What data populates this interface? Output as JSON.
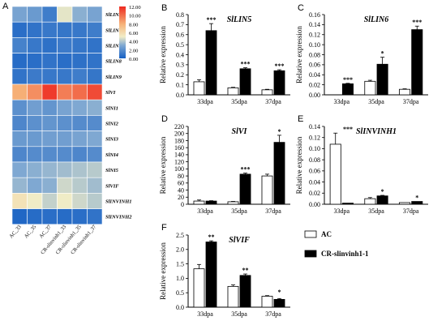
{
  "figure": {
    "panel_letters": [
      "A",
      "B",
      "C",
      "D",
      "E",
      "F"
    ],
    "legend": [
      {
        "label": "AC",
        "color": "#ffffff"
      },
      {
        "label": "CR-slinvinh1-1",
        "color": "#000000"
      }
    ]
  },
  "chart_data": [
    {
      "type": "heatmap",
      "panel": "A",
      "rows": [
        "SlLIN5",
        "SlLIN6",
        "SlLIN7",
        "SlLIN8",
        "SlLIN9",
        "SlVI",
        "SlNI1",
        "SlNI2",
        "SlNI3",
        "SlNI4",
        "SlNI5",
        "SlVIF",
        "SlINVINH1",
        "SlINVINH2"
      ],
      "columns": [
        "AC_33",
        "AC_35",
        "AC_37",
        "CR-slinvinh1_33",
        "CR-slinvinh1_35",
        "CR-slinvinh1_37"
      ],
      "values": [
        [
          2.8,
          2.4,
          1.2,
          4.8,
          3.2,
          2.8
        ],
        [
          0.6,
          0.8,
          1.0,
          0.9,
          1.0,
          1.2
        ],
        [
          1.4,
          1.0,
          0.7,
          1.1,
          0.9,
          0.8
        ],
        [
          0.5,
          0.6,
          0.8,
          0.6,
          0.7,
          0.8
        ],
        [
          0.8,
          1.1,
          1.0,
          1.0,
          1.2,
          0.9
        ],
        [
          8.0,
          9.0,
          11.5,
          9.5,
          10.0,
          11.0
        ],
        [
          2.0,
          2.6,
          2.2,
          2.8,
          3.0,
          3.2
        ],
        [
          1.6,
          2.0,
          2.2,
          2.0,
          1.8,
          1.8
        ],
        [
          2.4,
          2.4,
          2.6,
          2.6,
          2.8,
          3.0
        ],
        [
          1.6,
          1.8,
          1.8,
          1.8,
          1.6,
          1.8
        ],
        [
          3.0,
          3.2,
          3.4,
          3.6,
          3.8,
          4.0
        ],
        [
          3.4,
          3.0,
          3.2,
          4.4,
          4.0,
          3.6
        ],
        [
          5.6,
          5.0,
          4.2,
          5.0,
          4.4,
          4.0
        ],
        [
          0.3,
          0.5,
          0.6,
          0.5,
          0.6,
          0.8
        ]
      ],
      "colorbar": {
        "min": 0,
        "max": 12,
        "ticks": [
          "12.00",
          "10.00",
          "8.00",
          "6.00",
          "4.00",
          "2.00",
          "0.00"
        ]
      }
    },
    {
      "type": "bar",
      "panel": "B",
      "title": "SlLIN5",
      "categories": [
        "33dpa",
        "35dpa",
        "37dpa"
      ],
      "ylabel": "Relative expression",
      "ylim": [
        0,
        0.8
      ],
      "yticks": [
        "0.0",
        "0.1",
        "0.2",
        "0.3",
        "0.4",
        "0.5",
        "0.6",
        "0.7",
        "0.8"
      ],
      "series": [
        {
          "name": "AC",
          "values": [
            0.13,
            0.07,
            0.05
          ],
          "errors": [
            0.02,
            0.005,
            0.005
          ]
        },
        {
          "name": "CR-slinvinh1-1",
          "values": [
            0.64,
            0.26,
            0.24
          ],
          "errors": [
            0.07,
            0.01,
            0.01
          ]
        }
      ],
      "significance": [
        "***",
        "***",
        "***"
      ]
    },
    {
      "type": "bar",
      "panel": "C",
      "title": "SlLIN6",
      "categories": [
        "33dpa",
        "35dpa",
        "37dpa"
      ],
      "ylabel": "Relative expression",
      "ylim": [
        0,
        0.16
      ],
      "yticks": [
        "0.00",
        "0.02",
        "0.04",
        "0.06",
        "0.08",
        "0.10",
        "0.12",
        "0.14",
        "0.16"
      ],
      "series": [
        {
          "name": "AC",
          "values": [
            0.0,
            0.027,
            0.011
          ],
          "errors": [
            0.0,
            0.002,
            0.001
          ]
        },
        {
          "name": "CR-slinvinh1-1",
          "values": [
            0.022,
            0.061,
            0.13
          ],
          "errors": [
            0.001,
            0.014,
            0.007
          ]
        }
      ],
      "significance": [
        "***",
        "*",
        "***"
      ]
    },
    {
      "type": "bar",
      "panel": "D",
      "title": "SlVI",
      "categories": [
        "33dpa",
        "35dpa",
        "37dpa"
      ],
      "ylabel": "Relative expression",
      "ylim": [
        0,
        220
      ],
      "yticks": [
        "0",
        "20",
        "40",
        "60",
        "80",
        "100",
        "120",
        "140",
        "160",
        "180",
        "200",
        "220"
      ],
      "series": [
        {
          "name": "AC",
          "values": [
            9,
            7,
            80
          ],
          "errors": [
            3,
            1,
            5
          ]
        },
        {
          "name": "CR-slinvinh1-1",
          "values": [
            9,
            85,
            175
          ],
          "errors": [
            1,
            3,
            20
          ]
        }
      ],
      "significance": [
        "",
        "***",
        "*"
      ]
    },
    {
      "type": "bar",
      "panel": "E",
      "title": "SlINVINH1",
      "categories": [
        "33dpa",
        "35dpa",
        "37dpa"
      ],
      "ylabel": "Relative expression",
      "ylim": [
        0,
        0.14
      ],
      "yticks": [
        "0.00",
        "0.02",
        "0.04",
        "0.06",
        "0.08",
        "0.10",
        "0.12",
        "0.14"
      ],
      "series": [
        {
          "name": "AC",
          "values": [
            0.108,
            0.01,
            0.003
          ],
          "errors": [
            0.02,
            0.002,
            0.0
          ]
        },
        {
          "name": "CR-slinvinh1-1",
          "values": [
            0.002,
            0.015,
            0.005
          ],
          "errors": [
            0.0,
            0.001,
            0.0
          ]
        }
      ],
      "significance": [
        "***",
        "*",
        "*"
      ]
    },
    {
      "type": "bar",
      "panel": "F",
      "title": "SlVIF",
      "categories": [
        "33dpa",
        "35dpa",
        "37dpa"
      ],
      "ylabel": "Relative expression",
      "ylim": [
        0,
        2.5
      ],
      "yticks": [
        "0.0",
        "0.5",
        "1.0",
        "1.5",
        "2.0",
        "2.5"
      ],
      "series": [
        {
          "name": "AC",
          "values": [
            1.33,
            0.72,
            0.38
          ],
          "errors": [
            0.15,
            0.05,
            0.02
          ]
        },
        {
          "name": "CR-slinvinh1-1",
          "values": [
            2.26,
            1.1,
            0.27
          ],
          "errors": [
            0.04,
            0.05,
            0.03
          ]
        }
      ],
      "significance": [
        "**",
        "**",
        "*"
      ]
    }
  ]
}
